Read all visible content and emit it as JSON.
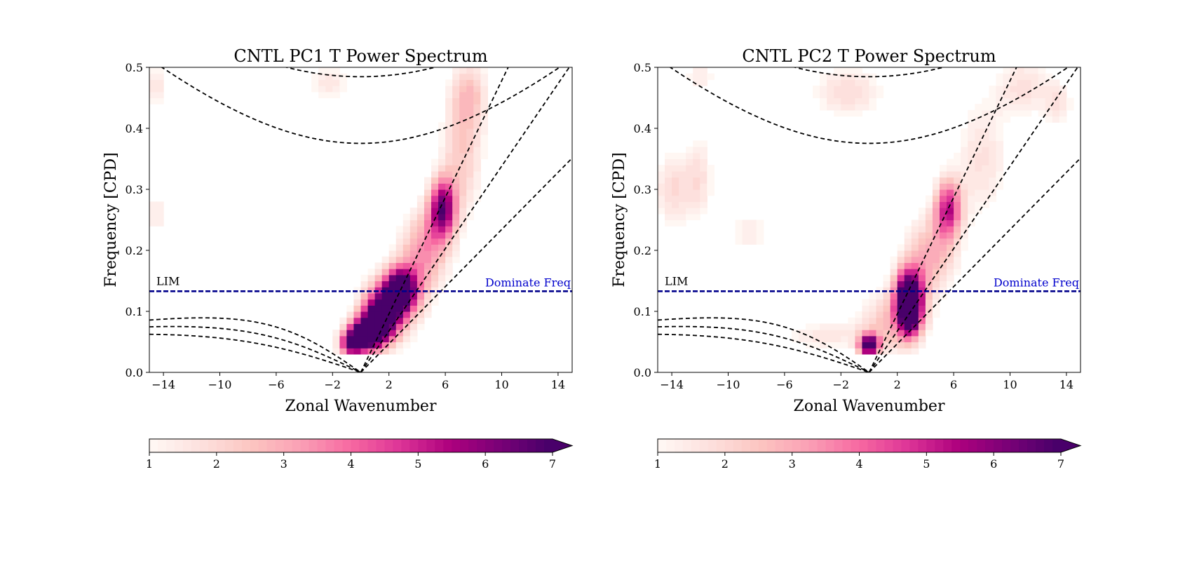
{
  "chart_data": [
    {
      "type": "heatmap",
      "title": "CNTL PC1 T Power Spectrum",
      "xlabel": "Zonal Wavenumber",
      "ylabel": "Frequency [CPD]",
      "xlim": [
        -15,
        15
      ],
      "ylim": [
        0,
        0.5
      ],
      "xticks": [
        -14,
        -10,
        -6,
        -2,
        2,
        6,
        10,
        14
      ],
      "xtick_labels": [
        "−14",
        "−10",
        "−6",
        "−2",
        "2",
        "6",
        "10",
        "14"
      ],
      "yticks": [
        0.0,
        0.1,
        0.2,
        0.3,
        0.4,
        0.5
      ],
      "ytick_labels": [
        "0.0",
        "0.1",
        "0.2",
        "0.3",
        "0.4",
        "0.5"
      ],
      "grid": false,
      "reference_line": {
        "y": 0.133,
        "color": "#00008b",
        "left_label": "LIM",
        "right_label": "Dominate Freq",
        "right_label_color": "#0000cc"
      },
      "power_blobs": [
        {
          "k": 0.2,
          "f": 0.06,
          "sk": 0.9,
          "sf": 0.02,
          "v": 7.5
        },
        {
          "k": 1.4,
          "f": 0.09,
          "sk": 0.9,
          "sf": 0.028,
          "v": 6.6
        },
        {
          "k": 2.8,
          "f": 0.135,
          "sk": 0.8,
          "sf": 0.025,
          "v": 6.8
        },
        {
          "k": 5.8,
          "f": 0.27,
          "sk": 0.7,
          "sf": 0.035,
          "v": 5.6
        },
        {
          "k": 4.5,
          "f": 0.2,
          "sk": 1.3,
          "sf": 0.05,
          "v": 3.4
        },
        {
          "k": 2.2,
          "f": 0.11,
          "sk": 1.6,
          "sf": 0.045,
          "v": 3.0
        },
        {
          "k": 7.2,
          "f": 0.36,
          "sk": 1.2,
          "sf": 0.08,
          "v": 2.4
        },
        {
          "k": 7.8,
          "f": 0.46,
          "sk": 1.0,
          "sf": 0.04,
          "v": 1.9
        },
        {
          "k": -14.5,
          "f": 0.47,
          "sk": 0.5,
          "sf": 0.03,
          "v": 1.8
        },
        {
          "k": -2.2,
          "f": 0.475,
          "sk": 1.2,
          "sf": 0.025,
          "v": 1.7
        },
        {
          "k": -14.5,
          "f": 0.26,
          "sk": 0.6,
          "sf": 0.03,
          "v": 1.6
        },
        {
          "k": -13.0,
          "f": 0.37,
          "sk": 0.25,
          "sf": 0.01,
          "v": 1.7
        },
        {
          "k": -11.0,
          "f": 0.29,
          "sk": 0.2,
          "sf": 0.02,
          "v": 1.4
        },
        {
          "k": -0.8,
          "f": 0.045,
          "sk": 0.6,
          "sf": 0.015,
          "v": 4.0
        }
      ],
      "colorbar": {
        "min": 1,
        "max": 7,
        "ticks": [
          1,
          2,
          3,
          4,
          5,
          6,
          7
        ],
        "extend": "max"
      }
    },
    {
      "type": "heatmap",
      "title": "CNTL PC2 T Power Spectrum",
      "xlabel": "Zonal Wavenumber",
      "ylabel": "Frequency [CPD]",
      "xlim": [
        -15,
        15
      ],
      "ylim": [
        0,
        0.5
      ],
      "xticks": [
        -14,
        -10,
        -6,
        -2,
        2,
        6,
        10,
        14
      ],
      "xtick_labels": [
        "−14",
        "−10",
        "−6",
        "−2",
        "2",
        "6",
        "10",
        "14"
      ],
      "yticks": [
        0.0,
        0.1,
        0.2,
        0.3,
        0.4,
        0.5
      ],
      "ytick_labels": [
        "0.0",
        "0.1",
        "0.2",
        "0.3",
        "0.4",
        "0.5"
      ],
      "grid": false,
      "reference_line": {
        "y": 0.133,
        "color": "#00008b",
        "left_label": "LIM",
        "right_label": "Dominate Freq",
        "right_label_color": "#0000cc"
      },
      "power_blobs": [
        {
          "k": 0.0,
          "f": 0.045,
          "sk": 0.5,
          "sf": 0.012,
          "v": 7.2
        },
        {
          "k": 2.8,
          "f": 0.13,
          "sk": 0.7,
          "sf": 0.03,
          "v": 7.0
        },
        {
          "k": 2.9,
          "f": 0.09,
          "sk": 0.6,
          "sf": 0.025,
          "v": 5.0
        },
        {
          "k": 5.6,
          "f": 0.27,
          "sk": 0.7,
          "sf": 0.035,
          "v": 4.8
        },
        {
          "k": 4.3,
          "f": 0.19,
          "sk": 1.4,
          "sf": 0.05,
          "v": 3.0
        },
        {
          "k": 1.5,
          "f": 0.08,
          "sk": 1.8,
          "sf": 0.04,
          "v": 2.6
        },
        {
          "k": -3.5,
          "f": 0.06,
          "sk": 2.0,
          "sf": 0.02,
          "v": 1.6
        },
        {
          "k": -14.0,
          "f": 0.3,
          "sk": 1.0,
          "sf": 0.05,
          "v": 2.0
        },
        {
          "k": -12.0,
          "f": 0.32,
          "sk": 0.8,
          "sf": 0.06,
          "v": 1.7
        },
        {
          "k": -8.5,
          "f": 0.23,
          "sk": 1.2,
          "sf": 0.03,
          "v": 1.5
        },
        {
          "k": -1.5,
          "f": 0.46,
          "sk": 2.0,
          "sf": 0.035,
          "v": 2.0
        },
        {
          "k": -12.0,
          "f": 0.485,
          "sk": 1.0,
          "sf": 0.02,
          "v": 1.5
        },
        {
          "k": 8.0,
          "f": 0.35,
          "sk": 1.5,
          "sf": 0.08,
          "v": 1.8
        },
        {
          "k": 11.0,
          "f": 0.47,
          "sk": 1.4,
          "sf": 0.04,
          "v": 1.8
        },
        {
          "k": 13.5,
          "f": 0.44,
          "sk": 0.8,
          "sf": 0.03,
          "v": 1.6
        }
      ],
      "colorbar": {
        "min": 1,
        "max": 7,
        "ticks": [
          1,
          2,
          3,
          4,
          5,
          6,
          7
        ],
        "extend": "max"
      }
    }
  ]
}
